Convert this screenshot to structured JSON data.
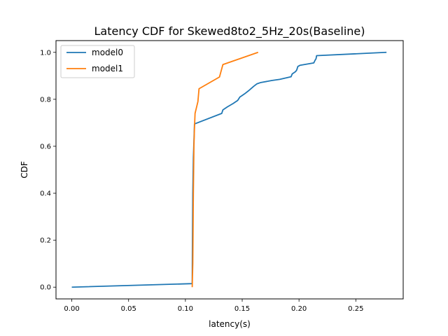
{
  "chart_data": {
    "type": "line",
    "title": "Latency CDF for Skewed8to2_5Hz_20s(Baseline)",
    "xlabel": "latency(s)",
    "ylabel": "CDF",
    "xlim": [
      -0.0139,
      0.2917
    ],
    "ylim": [
      -0.05,
      1.05
    ],
    "x_ticks": [
      0.0,
      0.05,
      0.1,
      0.15,
      0.2,
      0.25
    ],
    "x_tick_labels": [
      "0.00",
      "0.05",
      "0.10",
      "0.15",
      "0.20",
      "0.25"
    ],
    "y_ticks": [
      0.0,
      0.2,
      0.4,
      0.6,
      0.8,
      1.0
    ],
    "y_tick_labels": [
      "0.0",
      "0.2",
      "0.4",
      "0.6",
      "0.8",
      "1.0"
    ],
    "grid": false,
    "legend_position": "top-left",
    "series": [
      {
        "name": "model0",
        "color": "#1f77b4",
        "x": [
          0.0,
          0.106,
          0.1062,
          0.1065,
          0.107,
          0.1075,
          0.108,
          0.132,
          0.133,
          0.137,
          0.142,
          0.146,
          0.148,
          0.149,
          0.152,
          0.156,
          0.16,
          0.163,
          0.166,
          0.176,
          0.183,
          0.193,
          0.194,
          0.197,
          0.198,
          0.199,
          0.201,
          0.213,
          0.214,
          0.215,
          0.2155,
          0.277
        ],
        "y": [
          0.0,
          0.015,
          0.2,
          0.4,
          0.55,
          0.62,
          0.695,
          0.74,
          0.755,
          0.768,
          0.782,
          0.795,
          0.81,
          0.813,
          0.823,
          0.838,
          0.855,
          0.866,
          0.871,
          0.88,
          0.885,
          0.896,
          0.908,
          0.918,
          0.925,
          0.94,
          0.945,
          0.955,
          0.965,
          0.973,
          0.986,
          1.0
        ]
      },
      {
        "name": "model1",
        "color": "#ff7f0e",
        "x": [
          0.106,
          0.1065,
          0.107,
          0.1075,
          0.108,
          0.1085,
          0.111,
          0.112,
          0.13,
          0.133,
          0.164
        ],
        "y": [
          0.0,
          0.1,
          0.4,
          0.6,
          0.68,
          0.74,
          0.79,
          0.845,
          0.895,
          0.948,
          1.0
        ]
      }
    ]
  }
}
